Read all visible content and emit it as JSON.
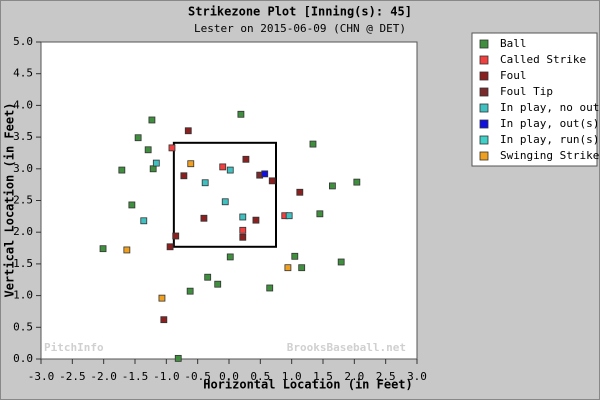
{
  "chart_data": {
    "type": "scatter",
    "title": "Strikezone Plot [Inning(s): 45]",
    "subtitle": "Lester on 2015-06-09 (CHN @ DET)",
    "x_label": "Horizontal Location (in Feet)",
    "y_label": "Vertical Location (in Feet)",
    "watermarks": [
      "PitchInfo",
      "BrooksBaseball.net"
    ],
    "xlim": [
      -3,
      3
    ],
    "ylim": [
      0,
      5
    ],
    "xticks": [
      {
        "value": -3,
        "label": "-3.0"
      },
      {
        "value": -2.5,
        "label": "-2.5"
      },
      {
        "value": -2,
        "label": "-2.0"
      },
      {
        "value": -1.5,
        "label": "-1.5"
      },
      {
        "value": -1,
        "label": "-1.0"
      },
      {
        "value": -0.5,
        "label": "-0.5"
      },
      {
        "value": 0,
        "label": "0.0"
      },
      {
        "value": 0.5,
        "label": "0.5"
      },
      {
        "value": 1,
        "label": "1.0"
      },
      {
        "value": 1.5,
        "label": "1.5"
      },
      {
        "value": 2,
        "label": "2.0"
      },
      {
        "value": 2.5,
        "label": "2.5"
      },
      {
        "value": 3,
        "label": "3.0"
      }
    ],
    "yticks": [
      {
        "value": 0,
        "label": "0.0"
      },
      {
        "value": 0.5,
        "label": "0.5"
      },
      {
        "value": 1,
        "label": "1.0"
      },
      {
        "value": 1.5,
        "label": "1.5"
      },
      {
        "value": 2,
        "label": "2.0"
      },
      {
        "value": 2.5,
        "label": "2.5"
      },
      {
        "value": 3,
        "label": "3.0"
      },
      {
        "value": 3.5,
        "label": "3.5"
      },
      {
        "value": 4,
        "label": "4.0"
      },
      {
        "value": 4.5,
        "label": "4.5"
      },
      {
        "value": 5,
        "label": "5.0"
      }
    ],
    "grid": false,
    "legend": "right",
    "strike_zone": {
      "x": [
        -0.88,
        0.75
      ],
      "y": [
        1.77,
        3.41
      ]
    },
    "series": [
      {
        "name": "Ball",
        "color": "#3f8f3f",
        "x": [
          0.19,
          -1.23,
          -1.45,
          -1.29,
          -1.71,
          -1.21,
          1.34,
          1.65,
          2.04,
          -1.55,
          1.45,
          -2.01,
          0.02,
          1.05,
          1.79,
          1.16,
          -0.34,
          -0.18,
          -0.62,
          0.65,
          -0.81
        ],
        "y": [
          3.86,
          3.77,
          3.49,
          3.3,
          2.98,
          3.0,
          3.39,
          2.73,
          2.79,
          2.43,
          2.29,
          1.74,
          1.61,
          1.62,
          1.53,
          1.44,
          1.29,
          1.18,
          1.07,
          1.12,
          0.01
        ]
      },
      {
        "name": "Called Strike",
        "color": "#f04040",
        "x": [
          -0.1,
          0.22,
          0.89,
          -0.91
        ],
        "y": [
          3.03,
          2.03,
          2.26,
          3.33
        ]
      },
      {
        "name": "Foul",
        "color": "#8b2020",
        "x": [
          -0.65,
          0.27,
          -0.72,
          1.13,
          0.69,
          -0.4,
          0.43,
          0.22,
          -0.85,
          -0.94,
          -1.04
        ],
        "y": [
          3.6,
          3.15,
          2.89,
          2.63,
          2.81,
          2.22,
          2.19,
          1.92,
          1.94,
          1.77,
          0.62
        ]
      },
      {
        "name": "Foul Tip",
        "color": "#7a2a2a",
        "x": [
          0.49
        ],
        "y": [
          2.9
        ]
      },
      {
        "name": "In play, no out",
        "color": "#40c0c0",
        "x": [
          -1.16,
          -0.38,
          0.02,
          -0.06,
          0.22,
          -1.36,
          0.96
        ],
        "y": [
          3.09,
          2.78,
          2.98,
          2.48,
          2.24,
          2.18,
          2.26
        ]
      },
      {
        "name": "In play, out(s)",
        "color": "#1010e0",
        "x": [
          0.57
        ],
        "y": [
          2.92
        ]
      },
      {
        "name": "In play, run(s)",
        "color": "#40d0c8",
        "x": [],
        "y": []
      },
      {
        "name": "Swinging Strike",
        "color": "#f0a020",
        "x": [
          -0.61,
          -1.63,
          -1.07,
          0.94
        ],
        "y": [
          3.08,
          1.72,
          0.96,
          1.44
        ]
      }
    ]
  }
}
